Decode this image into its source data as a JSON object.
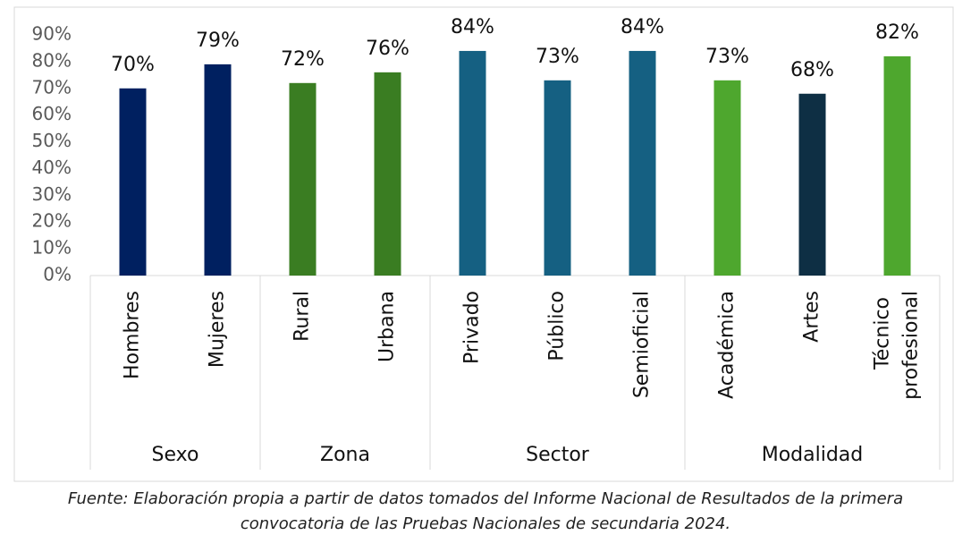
{
  "chart_data": {
    "type": "bar",
    "groups": [
      {
        "name": "Sexo",
        "categories": [
          "Hombres",
          "Mujeres"
        ],
        "values": [
          70,
          79
        ],
        "value_labels": [
          "70%",
          "79%"
        ],
        "colors": [
          "#002060",
          "#002060"
        ]
      },
      {
        "name": "Zona",
        "categories": [
          "Rural",
          "Urbana"
        ],
        "values": [
          72,
          76
        ],
        "value_labels": [
          "72%",
          "76%"
        ],
        "colors": [
          "#3a7d22",
          "#3a7d22"
        ]
      },
      {
        "name": "Sector",
        "categories": [
          "Privado",
          "Público",
          "Semioficial"
        ],
        "values": [
          84,
          73,
          84
        ],
        "value_labels": [
          "84%",
          "73%",
          "84%"
        ],
        "colors": [
          "#156082",
          "#156082",
          "#156082"
        ]
      },
      {
        "name": "Modalidad",
        "categories": [
          "Académica",
          "Artes",
          "Técnico profesional"
        ],
        "values": [
          73,
          68,
          82
        ],
        "value_labels": [
          "73%",
          "68%",
          "82%"
        ],
        "colors": [
          "#4ea72e",
          "#0e2f44",
          "#4ea72e"
        ]
      }
    ],
    "ylim": [
      0,
      90
    ],
    "yticks": [
      {
        "value": 0,
        "label": "0%"
      },
      {
        "value": 10,
        "label": "10%"
      },
      {
        "value": 20,
        "label": "20%"
      },
      {
        "value": 30,
        "label": "30%"
      },
      {
        "value": 40,
        "label": "40%"
      },
      {
        "value": 50,
        "label": "50%"
      },
      {
        "value": 60,
        "label": "60%"
      },
      {
        "value": 70,
        "label": "70%"
      },
      {
        "value": 80,
        "label": "80%"
      },
      {
        "value": 90,
        "label": "90%"
      }
    ],
    "footnote": [
      "Fuente: Elaboración propia a partir de datos tomados del Informe Nacional de Resultados de la primera",
      "convocatoria de las Pruebas Nacionales de secundaria 2024."
    ]
  }
}
